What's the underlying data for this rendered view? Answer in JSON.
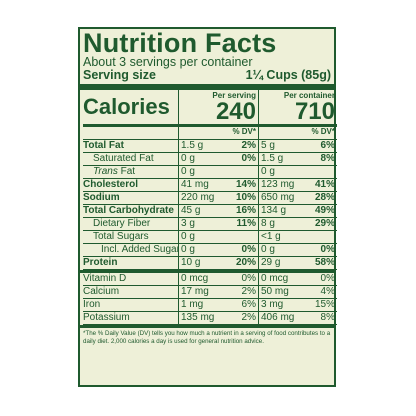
{
  "title": "Nutrition Facts",
  "servings_per_container": "About 3 servings per container",
  "serving_size_label": "Serving size",
  "serving_size_value": "1¼ Cups (85g)",
  "calories_label": "Calories",
  "per_serving_label": "Per serving",
  "per_container_label": "Per container",
  "calories_per_serving": "240",
  "calories_per_container": "710",
  "dv_label": "% DV*",
  "rows": [
    {
      "name": "Total Fat",
      "s_amt": "1.5 g",
      "s_dv": "2%",
      "c_amt": "5 g",
      "c_dv": "6%"
    },
    {
      "name": "Saturated Fat",
      "s_amt": "0 g",
      "s_dv": "0%",
      "c_amt": "1.5 g",
      "c_dv": "8%"
    },
    {
      "name": "Trans",
      "name_suffix": " Fat",
      "s_amt": "0 g",
      "s_dv": "",
      "c_amt": "0 g",
      "c_dv": ""
    },
    {
      "name": "Cholesterol",
      "s_amt": "41 mg",
      "s_dv": "14%",
      "c_amt": "123 mg",
      "c_dv": "41%"
    },
    {
      "name": "Sodium",
      "s_amt": "220 mg",
      "s_dv": "10%",
      "c_amt": "650 mg",
      "c_dv": "28%"
    },
    {
      "name": "Total Carbohydrate",
      "s_amt": "45 g",
      "s_dv": "16%",
      "c_amt": "134 g",
      "c_dv": "49%"
    },
    {
      "name": "Dietary Fiber",
      "s_amt": "3 g",
      "s_dv": "11%",
      "c_amt": "8 g",
      "c_dv": "29%"
    },
    {
      "name": "Total Sugars",
      "s_amt": "0 g",
      "s_dv": "",
      "c_amt": "<1 g",
      "c_dv": ""
    },
    {
      "name": "Incl. Added Sugars",
      "s_amt": "0 g",
      "s_dv": "0%",
      "c_amt": "0 g",
      "c_dv": "0%"
    },
    {
      "name": "Protein",
      "s_amt": "10 g",
      "s_dv": "20%",
      "c_amt": "29 g",
      "c_dv": "58%"
    }
  ],
  "vitamins": [
    {
      "name": "Vitamin D",
      "s_amt": "0 mcg",
      "s_dv": "0%",
      "c_amt": "0 mcg",
      "c_dv": "0%"
    },
    {
      "name": "Calcium",
      "s_amt": "17 mg",
      "s_dv": "2%",
      "c_amt": "50 mg",
      "c_dv": "4%"
    },
    {
      "name": "Iron",
      "s_amt": "1 mg",
      "s_dv": "6%",
      "c_amt": "3 mg",
      "c_dv": "15%"
    },
    {
      "name": "Potassium",
      "s_amt": "135 mg",
      "s_dv": "2%",
      "c_amt": "406 mg",
      "c_dv": "8%"
    }
  ],
  "footnote": "*The % Daily Value (DV) tells you how much a nutrient in a serving of food contributes to a daily diet. 2,000 calories a day is used for general nutrition advice."
}
